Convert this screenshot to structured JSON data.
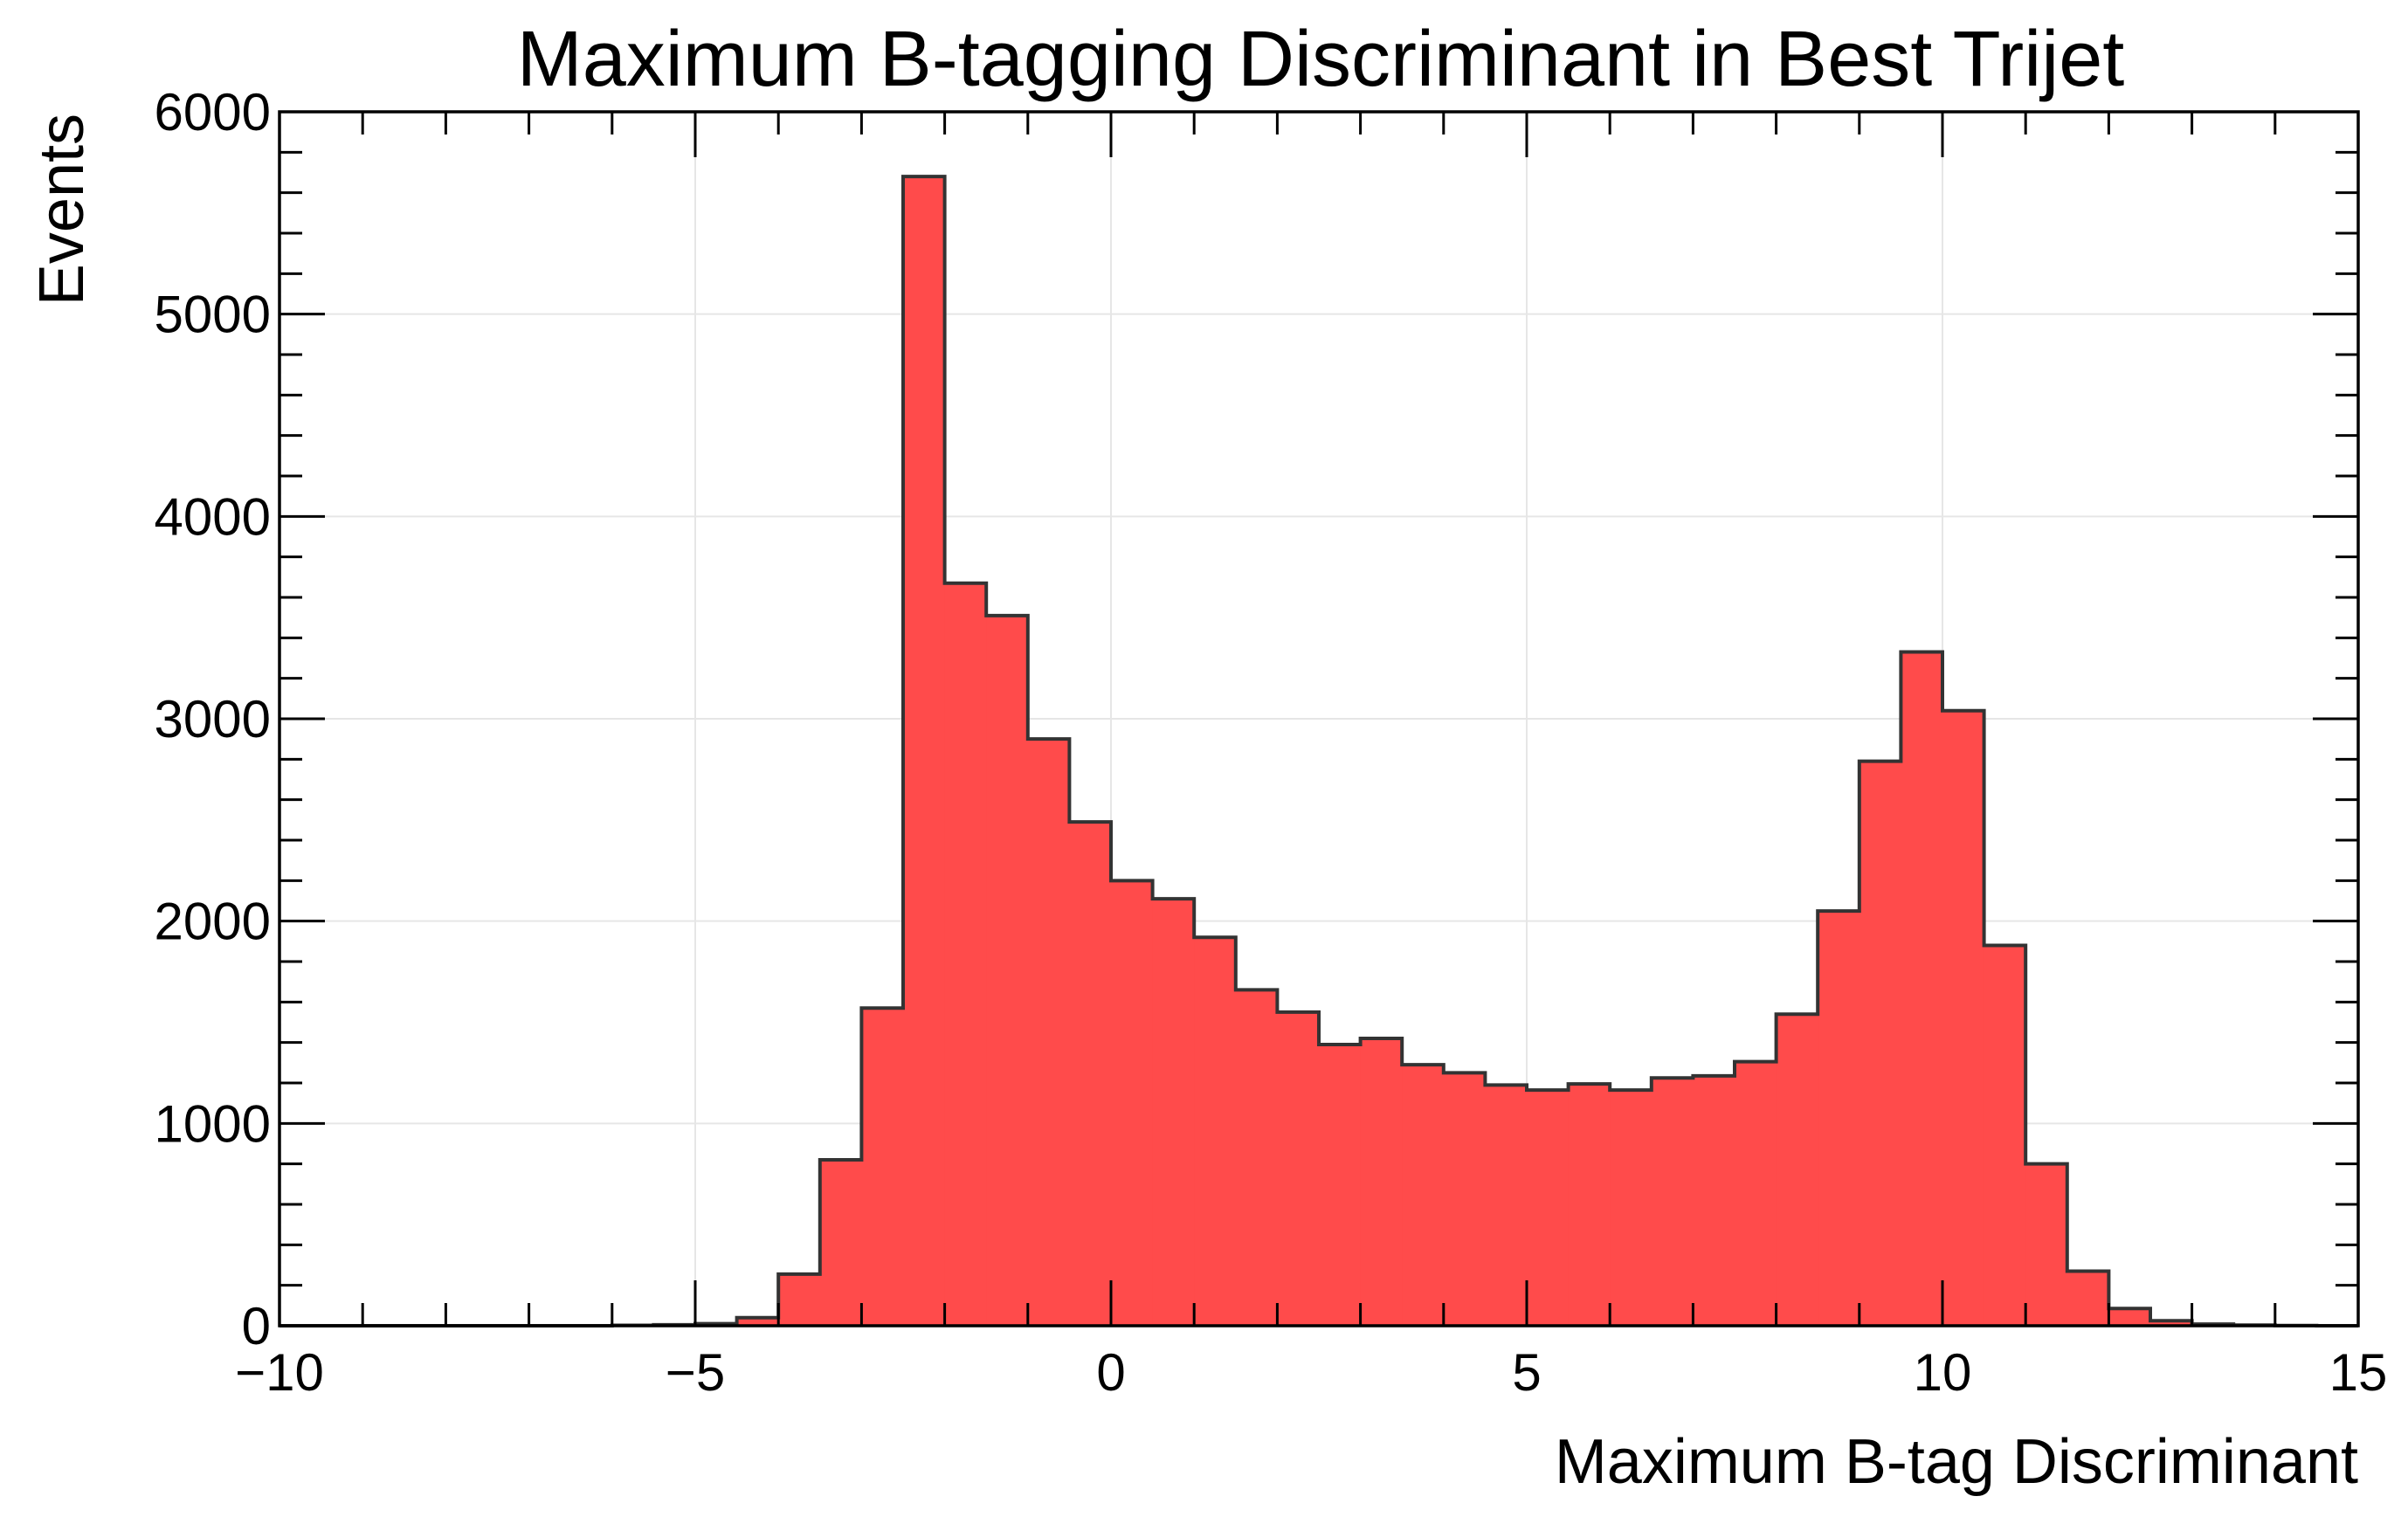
{
  "chart_data": {
    "type": "histogram",
    "title": "Maximum B-tagging Discriminant in Best Trijet",
    "xlabel": "Maximum B-tag Discriminant",
    "ylabel": "Events",
    "xlim": [
      -10,
      15
    ],
    "ylim": [
      0,
      6000
    ],
    "xticks": [
      -10,
      -5,
      0,
      5,
      10,
      15
    ],
    "xtick_labels": [
      "−10",
      "−5",
      "0",
      "5",
      "10",
      "15"
    ],
    "yticks": [
      0,
      1000,
      2000,
      3000,
      4000,
      5000,
      6000
    ],
    "ytick_labels": [
      "0",
      "1000",
      "2000",
      "3000",
      "4000",
      "5000",
      "6000"
    ],
    "grid": true,
    "bin_width": 0.5,
    "bin_start": -10,
    "bin_end": 15,
    "values": [
      0,
      0,
      0,
      0,
      0,
      0,
      0,
      0,
      2,
      5,
      10,
      40,
      255,
      820,
      1570,
      5680,
      3670,
      3510,
      2900,
      2490,
      2200,
      2110,
      1920,
      1660,
      1550,
      1390,
      1420,
      1290,
      1250,
      1190,
      1165,
      1195,
      1165,
      1225,
      1235,
      1305,
      1540,
      2050,
      2790,
      3330,
      3040,
      1880,
      800,
      270,
      85,
      25,
      8,
      3,
      1,
      0
    ],
    "colors": {
      "fill": "#ff4b4b",
      "edge": "#333333",
      "grid": "#e6e6e6",
      "axis": "#000000"
    }
  }
}
